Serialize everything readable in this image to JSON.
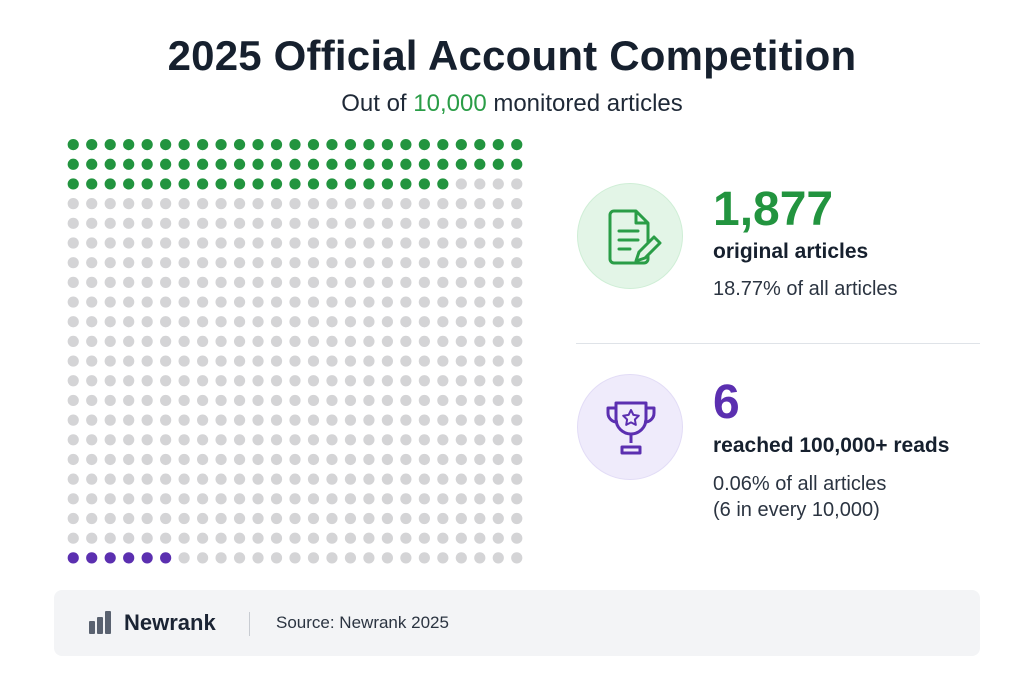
{
  "title": "2025 Official Account Competition",
  "subtitle": {
    "prefix": "Out of",
    "highlight": "10,000",
    "suffix": "monitored articles"
  },
  "stats": {
    "original": {
      "number": "1,877",
      "label": "original articles",
      "sub": "18.77% of all articles",
      "icon": "document-edit-icon",
      "color": "#22943f"
    },
    "reads": {
      "number": "6",
      "label": "reached 100,000+ reads",
      "sub_line1": "0.06% of all articles",
      "sub_line2": "(6 in every 10,000)",
      "icon": "trophy-icon",
      "color": "#5b2fb0"
    }
  },
  "footer": {
    "brand": "Newrank",
    "source": "Source: Newrank 2025"
  },
  "chart_data": {
    "type": "waffle",
    "grid": {
      "rows": 22,
      "cols": 25
    },
    "total": 10000,
    "segments": [
      {
        "name": "original articles",
        "value": 1877,
        "dots_shown": 71,
        "fill_from": "top",
        "color": "#22943f"
      },
      {
        "name": "reached 100,000+ reads",
        "value": 6,
        "dots_shown": 6,
        "fill_from": "bottom",
        "color": "#5b2fb0"
      }
    ],
    "other_color": "#d4d4d6"
  }
}
